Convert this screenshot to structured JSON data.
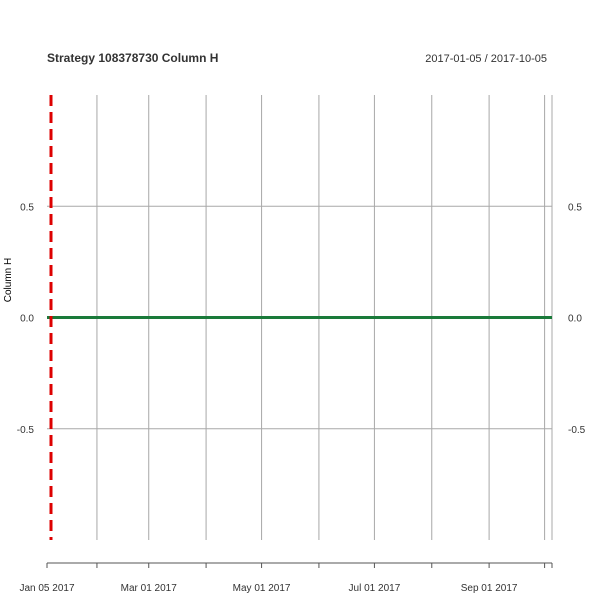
{
  "chart_data": {
    "type": "line",
    "title": "Strategy 108378730 Column H",
    "date_range": "2017-01-05 / 2017-10-05",
    "ylabel": "Column H",
    "xlabel": "",
    "ylim": [
      -1,
      1
    ],
    "xlim": [
      "2017-01-05",
      "2017-10-05"
    ],
    "y_ticks": [
      -0.5,
      0.0,
      0.5
    ],
    "y_tick_labels": [
      "-0.5",
      "0.0",
      "0.5"
    ],
    "x_tick_labels": [
      {
        "date": "2017-01-05",
        "label": "Jan 05 2017"
      },
      {
        "date": "2017-03-01",
        "label": "Mar 01 2017"
      },
      {
        "date": "2017-05-01",
        "label": "May 01 2017"
      },
      {
        "date": "2017-07-01",
        "label": "Jul 01 2017"
      },
      {
        "date": "2017-09-01",
        "label": "Sep 01 2017"
      }
    ],
    "x_gridlines": [
      "2017-02-01",
      "2017-03-01",
      "2017-04-01",
      "2017-05-01",
      "2017-06-01",
      "2017-07-01",
      "2017-08-01",
      "2017-09-01",
      "2017-10-01"
    ],
    "grid": true,
    "series": [
      {
        "x": [
          "2017-01-05",
          "2017-10-05"
        ],
        "values": [
          0,
          0
        ],
        "color": "#1a7a3a"
      }
    ],
    "vertical_markers": [
      {
        "date": "2017-01-05",
        "color": "#dd0000",
        "style": "dashed"
      }
    ]
  }
}
